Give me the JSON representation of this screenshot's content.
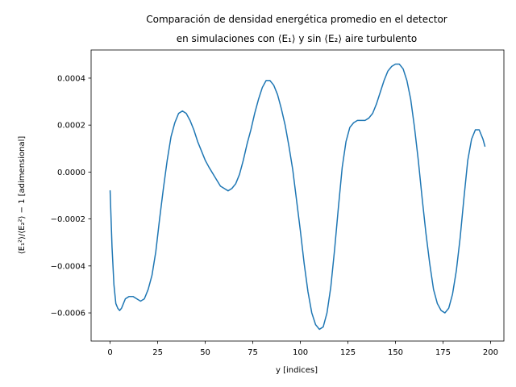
{
  "chart_data": {
    "type": "line",
    "title_line1": "Comparación de densidad energética promedio en el detector",
    "title_line2": "en simulaciones con ⟨E₁⟩ y sin ⟨E₂⟩ aire turbulento",
    "xlabel": "y [indices]",
    "ylabel": "⟨E₁²⟩/⟨E₂²⟩ − 1 [adimensional]",
    "xlim": [
      -10,
      207
    ],
    "ylim": [
      -0.00072,
      0.00052
    ],
    "xticks": [
      0,
      25,
      50,
      75,
      100,
      125,
      150,
      175,
      200
    ],
    "xtick_labels": [
      "0",
      "25",
      "50",
      "75",
      "100",
      "125",
      "150",
      "175",
      "200"
    ],
    "yticks": [
      -0.0006,
      -0.0004,
      -0.0002,
      0.0,
      0.0002,
      0.0004
    ],
    "ytick_labels": [
      "−0.0006",
      "−0.0004",
      "−0.0002",
      "0.0000",
      "0.0002",
      "0.0004"
    ],
    "grid": false,
    "line_color": "#1f77b4",
    "series": [
      {
        "x": [
          0,
          1,
          2,
          3,
          4,
          5,
          6,
          7,
          8,
          10,
          12,
          14,
          16,
          18,
          20,
          22,
          24,
          26,
          28,
          30,
          32,
          34,
          36,
          38,
          40,
          42,
          44,
          46,
          48,
          50,
          52,
          55,
          58,
          60,
          62,
          64,
          66,
          68,
          70,
          72,
          74,
          76,
          78,
          80,
          82,
          84,
          86,
          88,
          90,
          92,
          94,
          96,
          98,
          100,
          102,
          104,
          106,
          108,
          110,
          112,
          114,
          116,
          118,
          120,
          122,
          124,
          126,
          128,
          130,
          132,
          134,
          136,
          138,
          140,
          142,
          144,
          146,
          148,
          150,
          152,
          154,
          156,
          158,
          160,
          162,
          164,
          166,
          168,
          170,
          172,
          174,
          176,
          178,
          180,
          182,
          184,
          186,
          188,
          190,
          192,
          194,
          196,
          197
        ],
        "y": [
          -8e-05,
          -0.00032,
          -0.00048,
          -0.00056,
          -0.00058,
          -0.00059,
          -0.00058,
          -0.00056,
          -0.00054,
          -0.00053,
          -0.00053,
          -0.00054,
          -0.00055,
          -0.00054,
          -0.0005,
          -0.00044,
          -0.00034,
          -0.0002,
          -7e-05,
          5e-05,
          0.00015,
          0.00021,
          0.00025,
          0.00026,
          0.00025,
          0.00022,
          0.00018,
          0.00013,
          9e-05,
          5e-05,
          2e-05,
          -2e-05,
          -6e-05,
          -7e-05,
          -8e-05,
          -7e-05,
          -5e-05,
          -1e-05,
          5e-05,
          0.00012,
          0.00018,
          0.00025,
          0.00031,
          0.00036,
          0.00039,
          0.00039,
          0.00037,
          0.00033,
          0.00027,
          0.0002,
          0.00011,
          1e-05,
          -0.00012,
          -0.00025,
          -0.00039,
          -0.00051,
          -0.0006,
          -0.00065,
          -0.00067,
          -0.00066,
          -0.0006,
          -0.00049,
          -0.00033,
          -0.00015,
          2e-05,
          0.00013,
          0.00019,
          0.00021,
          0.00022,
          0.00022,
          0.00022,
          0.00023,
          0.00025,
          0.00029,
          0.00034,
          0.00039,
          0.00043,
          0.00045,
          0.00046,
          0.00046,
          0.00044,
          0.00039,
          0.00031,
          0.00019,
          5e-05,
          -0.00011,
          -0.00026,
          -0.00039,
          -0.0005,
          -0.00056,
          -0.00059,
          -0.0006,
          -0.00058,
          -0.00052,
          -0.00042,
          -0.00028,
          -0.00011,
          5e-05,
          0.00014,
          0.00018,
          0.00018,
          0.00014,
          0.00011
        ]
      }
    ]
  }
}
